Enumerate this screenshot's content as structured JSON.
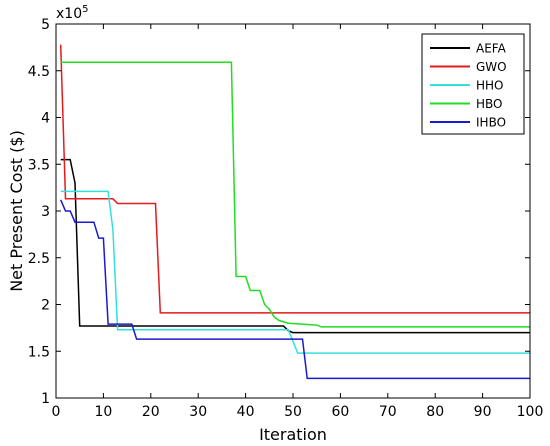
{
  "chart_data": {
    "type": "line",
    "title": "",
    "xlabel": "Iteration",
    "ylabel": "Net Present Cost ($)",
    "y_multiplier_label": "x10",
    "y_multiplier_exponent": "5",
    "xlim": [
      0,
      100
    ],
    "ylim": [
      1,
      5
    ],
    "xticks": [
      0,
      10,
      20,
      30,
      40,
      50,
      60,
      70,
      80,
      90,
      100
    ],
    "yticks": [
      1,
      1.5,
      2,
      2.5,
      3,
      3.5,
      4,
      4.5,
      5
    ],
    "ytick_labels": [
      "1",
      "1.5",
      "2",
      "2.5",
      "3",
      "3.5",
      "4",
      "4.5",
      "5"
    ],
    "grid": false,
    "legend_position": "top-right",
    "series": [
      {
        "name": "AEFA",
        "color": "#000000",
        "points": [
          [
            1,
            3.55
          ],
          [
            3,
            3.55
          ],
          [
            4,
            3.3
          ],
          [
            5,
            1.77
          ],
          [
            48,
            1.77
          ],
          [
            49,
            1.72
          ],
          [
            50,
            1.7
          ],
          [
            100,
            1.7
          ]
        ]
      },
      {
        "name": "GWO",
        "color": "#e41a1c",
        "points": [
          [
            1,
            4.78
          ],
          [
            2,
            3.13
          ],
          [
            12,
            3.13
          ],
          [
            13,
            3.08
          ],
          [
            21,
            3.08
          ],
          [
            22,
            1.91
          ],
          [
            100,
            1.91
          ]
        ]
      },
      {
        "name": "HHO",
        "color": "#33e0e0",
        "points": [
          [
            1,
            3.21
          ],
          [
            11,
            3.21
          ],
          [
            12,
            2.8
          ],
          [
            13,
            1.73
          ],
          [
            49,
            1.73
          ],
          [
            51,
            1.48
          ],
          [
            100,
            1.48
          ]
        ]
      },
      {
        "name": "HBO",
        "color": "#22dd22",
        "points": [
          [
            1,
            4.59
          ],
          [
            37,
            4.59
          ],
          [
            38,
            2.3
          ],
          [
            40,
            2.3
          ],
          [
            41,
            2.15
          ],
          [
            43,
            2.15
          ],
          [
            44,
            2.0
          ],
          [
            45,
            1.95
          ],
          [
            46,
            1.87
          ],
          [
            47,
            1.83
          ],
          [
            49,
            1.8
          ],
          [
            55,
            1.78
          ],
          [
            56,
            1.76
          ],
          [
            100,
            1.76
          ]
        ]
      },
      {
        "name": "IHBO",
        "color": "#1a1acc",
        "points": [
          [
            1,
            3.12
          ],
          [
            2,
            3.0
          ],
          [
            3,
            3.0
          ],
          [
            4,
            2.88
          ],
          [
            8,
            2.88
          ],
          [
            9,
            2.71
          ],
          [
            10,
            2.71
          ],
          [
            11,
            1.79
          ],
          [
            16,
            1.79
          ],
          [
            17,
            1.63
          ],
          [
            52,
            1.63
          ],
          [
            53,
            1.21
          ],
          [
            100,
            1.21
          ]
        ]
      }
    ]
  }
}
